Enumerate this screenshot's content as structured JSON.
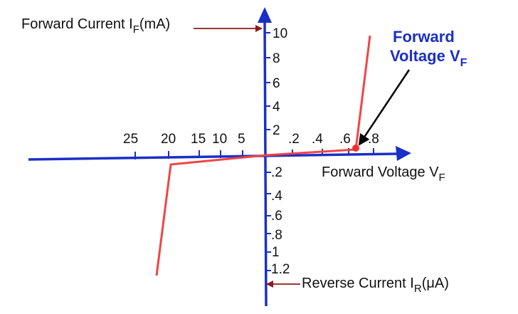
{
  "colors": {
    "axis": "#1a2fc7",
    "curve": "#f04545",
    "marker": "#f03030",
    "annotation_arrow": "#8b1a1a",
    "callout_title": "#1b2fc4",
    "text": "#111111"
  },
  "labels": {
    "forward_current_label": "Forward Current I",
    "forward_current_sub": "F",
    "forward_current_unit": "(mA)",
    "forward_voltage_axis_label": "Forward Voltage V",
    "forward_voltage_axis_sub": "F",
    "reverse_current_label": "Reverse Current I",
    "reverse_current_sub": "R",
    "reverse_current_unit": "(μA)",
    "callout_line1": "Forward",
    "callout_line2": "Voltage V",
    "callout_sub": "F"
  },
  "ticks": {
    "forward_current": [
      "10",
      "8",
      "6",
      "4",
      "2"
    ],
    "reverse_current": [
      ".2",
      ".4",
      ".6",
      ".8",
      "1",
      "1.2"
    ],
    "forward_voltage": [
      ".2",
      ".4",
      ".6",
      ".8"
    ],
    "reverse_voltage": [
      "25",
      "20",
      "15",
      "10",
      "5"
    ]
  }
}
